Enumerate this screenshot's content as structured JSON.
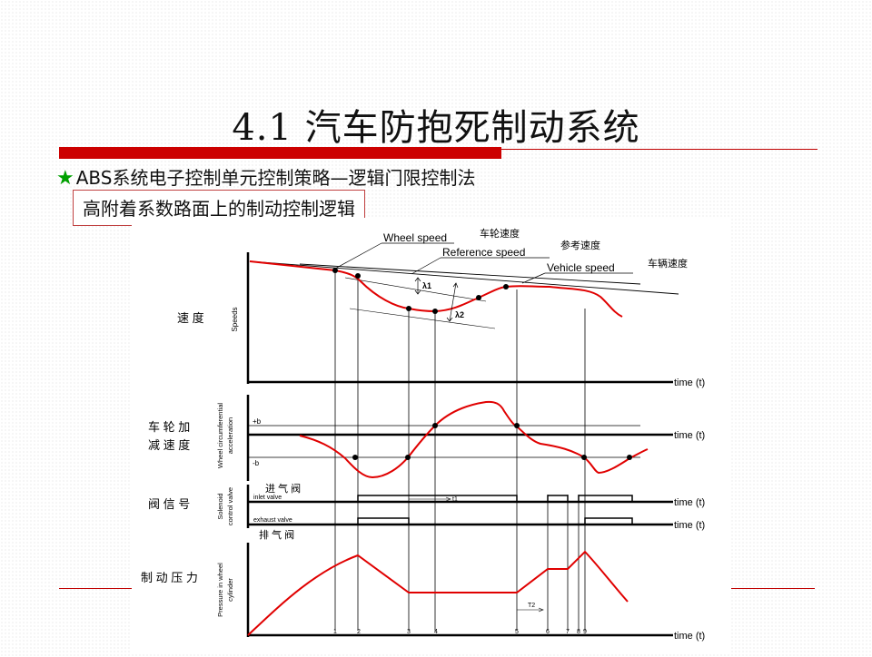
{
  "slide": {
    "title": "4.1 汽车防抱死制动系统",
    "bullet_star": "★",
    "bullet_text": "ABS系统电子控制单元控制策略—逻辑门限控制法",
    "boxed_text": "高附着系数路面上的制动控制逻辑"
  },
  "diagram": {
    "labels_en": {
      "wheel_speed": "Wheel speed",
      "reference_speed": "Reference speed",
      "vehicle_speed": "Vehicle speed",
      "time": "time (t)",
      "speeds_axis": "Speeds",
      "accel_axis_1": "Wheel circumferential",
      "accel_axis_2": "acceleration",
      "plus_b": "+b",
      "minus_b": "-b",
      "valve_axis_1": "Solenoid",
      "valve_axis_2": "control valve",
      "inlet_valve": "inlet valve",
      "exhaust_valve": "exhaust valve",
      "pressure_axis_1": "Pressure in wheel",
      "pressure_axis_2": "cylinder",
      "lambda1": "λ1",
      "lambda2": "λ2",
      "t1": "t1",
      "t2": "T2"
    },
    "labels_zh": {
      "wheel_speed": "车轮速度",
      "reference_speed": "参考速度",
      "vehicle_speed": "车辆速度",
      "speed": "速 度",
      "accel_1": "车 轮 加",
      "accel_2": "减 速 度",
      "valve_signal": "阀 信 号",
      "inlet": "进 气 阀",
      "exhaust": "排 气 阀",
      "pressure": "制 动 压 力"
    },
    "phase_numbers": [
      "1",
      "2",
      "3",
      "4",
      "5",
      "6",
      "7",
      "8",
      "9"
    ],
    "colors": {
      "curve": "#e00000",
      "axis": "#000000",
      "rule": "#cc0000",
      "star": "#00a000"
    }
  }
}
